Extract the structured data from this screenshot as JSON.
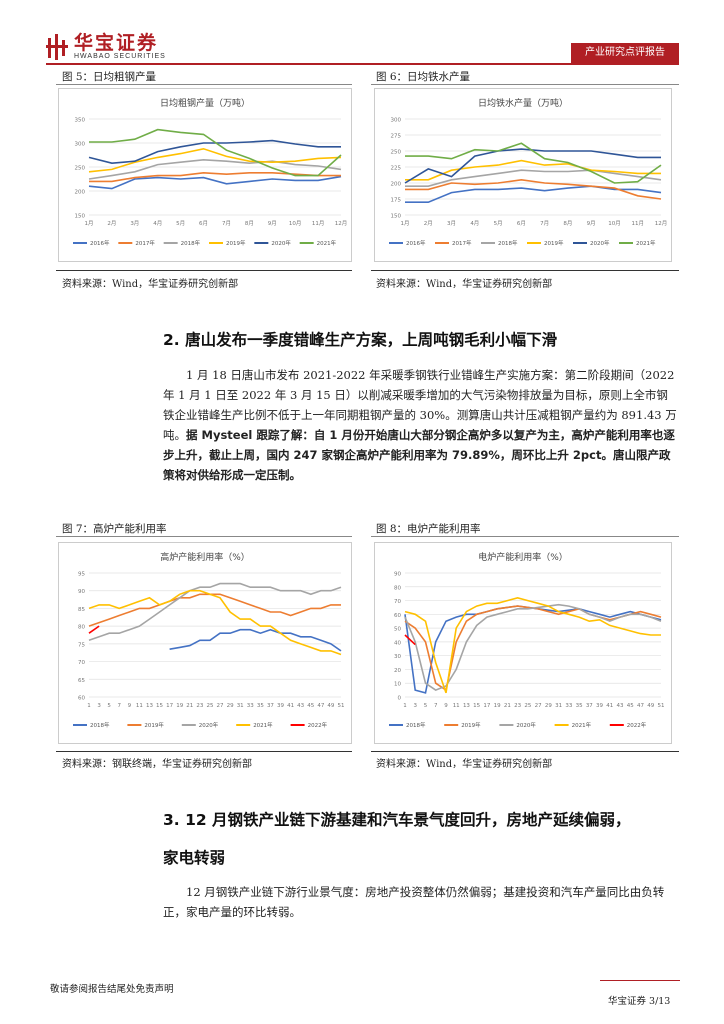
{
  "header": {
    "logo_cn": "华宝证券",
    "logo_en": "HWABAO SECURITIES",
    "tag": "产业研究点评报告"
  },
  "figures": [
    {
      "label": "图 5：日均粗钢产量",
      "source": "资料来源：Wind，华宝证券研究创新部"
    },
    {
      "label": "图 6：日均铁水产量",
      "source": "资料来源：Wind，华宝证券研究创新部"
    },
    {
      "label": "图 7：高炉产能利用率",
      "source": "资料来源：钢联终端，华宝证券研究创新部"
    },
    {
      "label": "图 8：电炉产能利用率",
      "source": "资料来源：Wind，华宝证券研究创新部"
    }
  ],
  "section2": {
    "heading": "2. 唐山发布一季度错峰生产方案，上周吨钢毛利小幅下滑",
    "para_normal": "1 月 18 日唐山市发布 2021-2022 年采暖季钢铁行业错峰生产实施方案：第二阶段期间（2022 年 1 月 1 日至 2022 年 3 月 15 日）以削减采暖季增加的大气污染物排放量为目标，原则上全市钢铁企业错峰生产比例不低于上一年同期粗钢产量的 30%。测算唐山共计压减粗钢产量约为 891.43 万吨。",
    "para_bold": "据 Mysteel 跟踪了解：自 1 月份开始唐山大部分钢企高炉多以复产为主，高炉产能利用率也逐步上升，截止上周，国内 247 家钢企高炉产能利用率为 79.89%，周环比上升 2pct。唐山限产政策将对供给形成一定压制。"
  },
  "section3": {
    "heading_line1": "3. 12 月钢铁产业链下游基建和汽车景气度回升，房地产延续偏弱，",
    "heading_line2": "家电转弱",
    "para": "12 月钢铁产业链下游行业景气度：房地产投资整体仍然偏弱；基建投资和汽车产量同比由负转正，家电产量的环比转弱。"
  },
  "footer": {
    "disclaimer": "敬请参阅报告结尾处免责声明",
    "page": "华宝证券   3/13"
  },
  "chart_data": [
    {
      "type": "line",
      "title": "日均粗钢产量（万吨）",
      "categories": [
        "1月",
        "2月",
        "3月",
        "4月",
        "5月",
        "6月",
        "7月",
        "8月",
        "9月",
        "10月",
        "11月",
        "12月"
      ],
      "ylim": [
        150,
        350
      ],
      "yticks": [
        150,
        200,
        250,
        300,
        350
      ],
      "series": [
        {
          "name": "2016年",
          "color": "#4472c4",
          "values": [
            210,
            205,
            225,
            228,
            225,
            228,
            215,
            220,
            225,
            222,
            222,
            230
          ]
        },
        {
          "name": "2017年",
          "color": "#ed7d31",
          "values": [
            220,
            220,
            228,
            232,
            232,
            238,
            235,
            238,
            238,
            235,
            232,
            232
          ]
        },
        {
          "name": "2018年",
          "color": "#a5a5a5",
          "values": [
            225,
            232,
            240,
            255,
            260,
            265,
            262,
            258,
            262,
            255,
            252,
            245
          ]
        },
        {
          "name": "2019年",
          "color": "#ffc000",
          "values": [
            240,
            245,
            260,
            270,
            278,
            288,
            272,
            262,
            260,
            262,
            268,
            270
          ]
        },
        {
          "name": "2020年",
          "color": "#2f5597",
          "values": [
            270,
            258,
            262,
            282,
            292,
            300,
            300,
            302,
            305,
            298,
            292,
            292
          ]
        },
        {
          "name": "2021年",
          "color": "#70ad47",
          "values": [
            302,
            302,
            308,
            328,
            322,
            318,
            285,
            268,
            248,
            232,
            232,
            275
          ]
        }
      ]
    },
    {
      "type": "line",
      "title": "日均铁水产量（万吨）",
      "categories": [
        "1月",
        "2月",
        "3月",
        "4月",
        "5月",
        "6月",
        "7月",
        "8月",
        "9月",
        "10月",
        "11月",
        "12月"
      ],
      "ylim": [
        150,
        300
      ],
      "yticks": [
        150,
        175,
        200,
        225,
        250,
        275,
        300
      ],
      "series": [
        {
          "name": "2016年",
          "color": "#4472c4",
          "values": [
            170,
            170,
            185,
            190,
            190,
            192,
            188,
            192,
            195,
            190,
            190,
            185
          ]
        },
        {
          "name": "2017年",
          "color": "#ed7d31",
          "values": [
            190,
            190,
            200,
            198,
            200,
            205,
            200,
            198,
            195,
            192,
            180,
            175
          ]
        },
        {
          "name": "2018年",
          "color": "#a5a5a5",
          "values": [
            195,
            195,
            205,
            210,
            215,
            220,
            218,
            218,
            220,
            215,
            210,
            205
          ]
        },
        {
          "name": "2019年",
          "color": "#ffc000",
          "values": [
            205,
            205,
            220,
            225,
            228,
            235,
            228,
            230,
            220,
            218,
            215,
            215
          ]
        },
        {
          "name": "2020年",
          "color": "#2f5597",
          "values": [
            200,
            222,
            210,
            242,
            250,
            253,
            250,
            250,
            250,
            245,
            240,
            240
          ]
        },
        {
          "name": "2021年",
          "color": "#70ad47",
          "values": [
            242,
            242,
            238,
            252,
            250,
            262,
            238,
            232,
            218,
            200,
            202,
            228
          ]
        }
      ]
    },
    {
      "type": "line",
      "title": "高炉产能利用率（%）",
      "x": [
        "1",
        "3",
        "5",
        "7",
        "9",
        "11",
        "13",
        "15",
        "17",
        "19",
        "21",
        "23",
        "25",
        "27",
        "29",
        "31",
        "33",
        "35",
        "37",
        "39",
        "41",
        "43",
        "45",
        "47",
        "49",
        "51"
      ],
      "ylim": [
        60,
        95
      ],
      "yticks": [
        60,
        65,
        70,
        75,
        80,
        85,
        90,
        95
      ],
      "series": [
        {
          "name": "2018年",
          "color": "#4472c4",
          "values": [
            null,
            null,
            null,
            null,
            null,
            null,
            null,
            null,
            73.5,
            74,
            74.5,
            76,
            76,
            78,
            78,
            79,
            79,
            78,
            79,
            78,
            78,
            77,
            77,
            76,
            75,
            73
          ]
        },
        {
          "name": "2019年",
          "color": "#ed7d31",
          "values": [
            80,
            81,
            82,
            83,
            84,
            85,
            85,
            86,
            87,
            88,
            88,
            89,
            89,
            89,
            88,
            87,
            86,
            85,
            84,
            84,
            83,
            84,
            85,
            85,
            86,
            86
          ]
        },
        {
          "name": "2020年",
          "color": "#a5a5a5",
          "values": [
            76,
            77,
            78,
            78,
            79,
            80,
            82,
            84,
            86,
            88,
            90,
            91,
            91,
            92,
            92,
            92,
            91,
            91,
            91,
            90,
            90,
            90,
            89,
            90,
            90,
            91
          ]
        },
        {
          "name": "2021年",
          "color": "#ffc000",
          "values": [
            85,
            86,
            86,
            85,
            86,
            87,
            88,
            86,
            87,
            89,
            90,
            90,
            89,
            88,
            84,
            82,
            82,
            80,
            80,
            78,
            76,
            75,
            74,
            73,
            73,
            72
          ]
        },
        {
          "name": "2022年",
          "color": "#ff0000",
          "values": [
            78,
            80,
            null,
            null,
            null,
            null,
            null,
            null,
            null,
            null,
            null,
            null,
            null,
            null,
            null,
            null,
            null,
            null,
            null,
            null,
            null,
            null,
            null,
            null,
            null,
            null
          ]
        }
      ]
    },
    {
      "type": "line",
      "title": "电炉产能利用率（%）",
      "x": [
        "1",
        "3",
        "5",
        "7",
        "9",
        "11",
        "13",
        "15",
        "17",
        "19",
        "21",
        "23",
        "25",
        "27",
        "29",
        "31",
        "33",
        "35",
        "37",
        "39",
        "41",
        "43",
        "45",
        "47",
        "49",
        "51"
      ],
      "ylim": [
        0,
        90
      ],
      "yticks": [
        0,
        10,
        20,
        30,
        40,
        50,
        60,
        70,
        80,
        90
      ],
      "series": [
        {
          "name": "2018年",
          "color": "#4472c4",
          "values": [
            60,
            5,
            3,
            40,
            55,
            58,
            60,
            60,
            62,
            64,
            65,
            66,
            65,
            64,
            63,
            62,
            63,
            64,
            62,
            60,
            58,
            60,
            62,
            60,
            58,
            56
          ]
        },
        {
          "name": "2019年",
          "color": "#ed7d31",
          "values": [
            55,
            50,
            40,
            10,
            5,
            40,
            55,
            60,
            62,
            64,
            65,
            66,
            65,
            64,
            62,
            60,
            62,
            64,
            60,
            58,
            56,
            58,
            60,
            62,
            60,
            58
          ]
        },
        {
          "name": "2020年",
          "color": "#a5a5a5",
          "values": [
            58,
            40,
            10,
            5,
            8,
            20,
            40,
            52,
            58,
            60,
            62,
            64,
            64,
            65,
            66,
            67,
            66,
            64,
            60,
            58,
            55,
            58,
            60,
            60,
            58,
            55
          ]
        },
        {
          "name": "2021年",
          "color": "#ffc000",
          "values": [
            62,
            60,
            55,
            25,
            3,
            50,
            62,
            66,
            68,
            68,
            70,
            72,
            70,
            68,
            66,
            62,
            60,
            58,
            55,
            56,
            52,
            50,
            48,
            46,
            45,
            45
          ]
        },
        {
          "name": "2022年",
          "color": "#ff0000",
          "values": [
            45,
            38,
            null,
            null,
            null,
            null,
            null,
            null,
            null,
            null,
            null,
            null,
            null,
            null,
            null,
            null,
            null,
            null,
            null,
            null,
            null,
            null,
            null,
            null,
            null,
            null
          ]
        }
      ]
    }
  ]
}
